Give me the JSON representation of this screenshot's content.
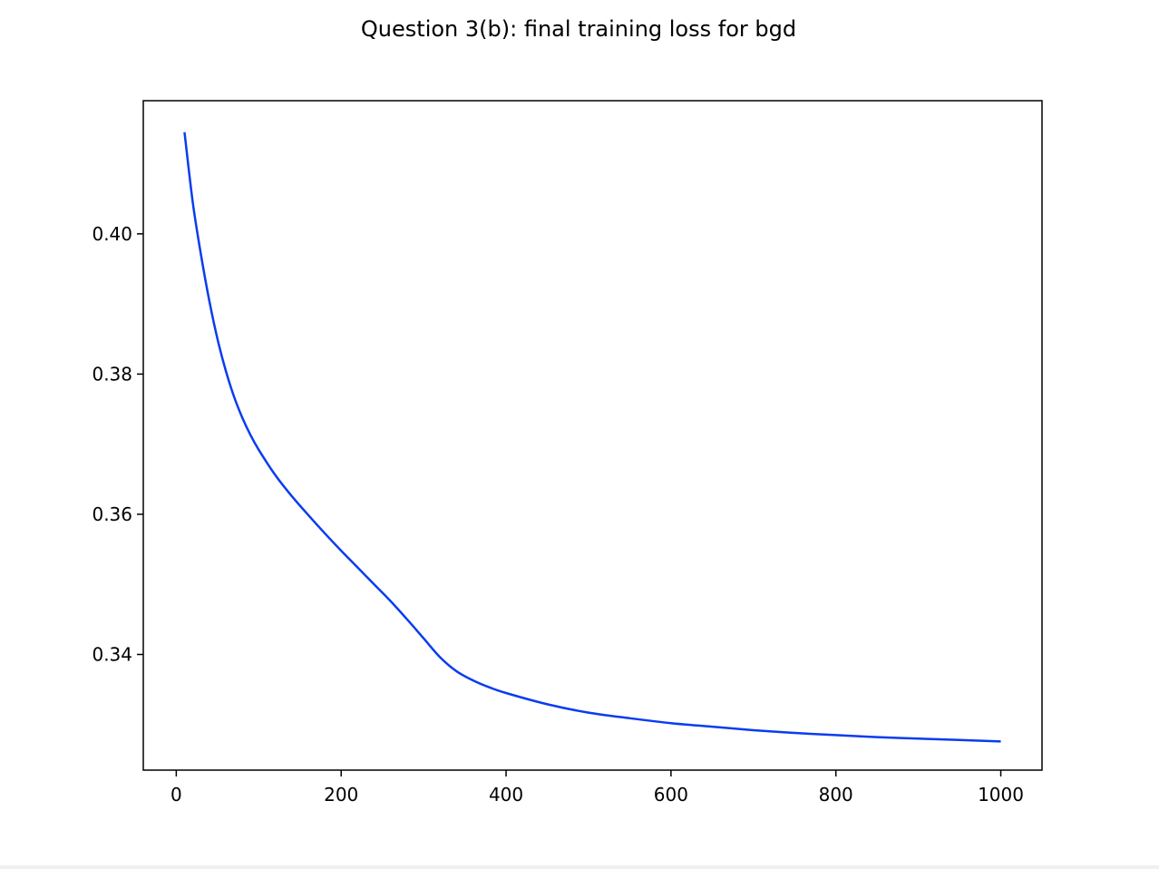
{
  "chart_data": {
    "type": "line",
    "title": "Question 3(b): final training loss for bgd",
    "xlabel": "",
    "ylabel": "",
    "xlim": [
      -40,
      1050
    ],
    "ylim": [
      0.3235,
      0.419
    ],
    "xticks": [
      0,
      200,
      400,
      600,
      800,
      1000
    ],
    "yticks": [
      0.34,
      0.36,
      0.38,
      0.4
    ],
    "xtick_labels": [
      "0",
      "200",
      "400",
      "600",
      "800",
      "1000"
    ],
    "ytick_labels": [
      "0.34",
      "0.36",
      "0.38",
      "0.40"
    ],
    "grid": false,
    "legend": "none",
    "series": [
      {
        "color": "#0a3cf0",
        "x": [
          10,
          20,
          30,
          40,
          50,
          60,
          70,
          80,
          90,
          100,
          120,
          140,
          160,
          180,
          200,
          220,
          240,
          260,
          280,
          300,
          320,
          340,
          360,
          380,
          400,
          450,
          500,
          550,
          600,
          650,
          700,
          750,
          800,
          850,
          900,
          950,
          1000
        ],
        "y": [
          0.4145,
          0.4045,
          0.397,
          0.3905,
          0.385,
          0.3805,
          0.3768,
          0.3738,
          0.3713,
          0.3692,
          0.3656,
          0.3626,
          0.3599,
          0.3573,
          0.3548,
          0.3524,
          0.35,
          0.3476,
          0.345,
          0.3423,
          0.3396,
          0.3376,
          0.3363,
          0.3353,
          0.3345,
          0.3329,
          0.3317,
          0.3309,
          0.3302,
          0.3297,
          0.3292,
          0.3288,
          0.3285,
          0.3282,
          0.328,
          0.3278,
          0.3276
        ]
      }
    ]
  }
}
